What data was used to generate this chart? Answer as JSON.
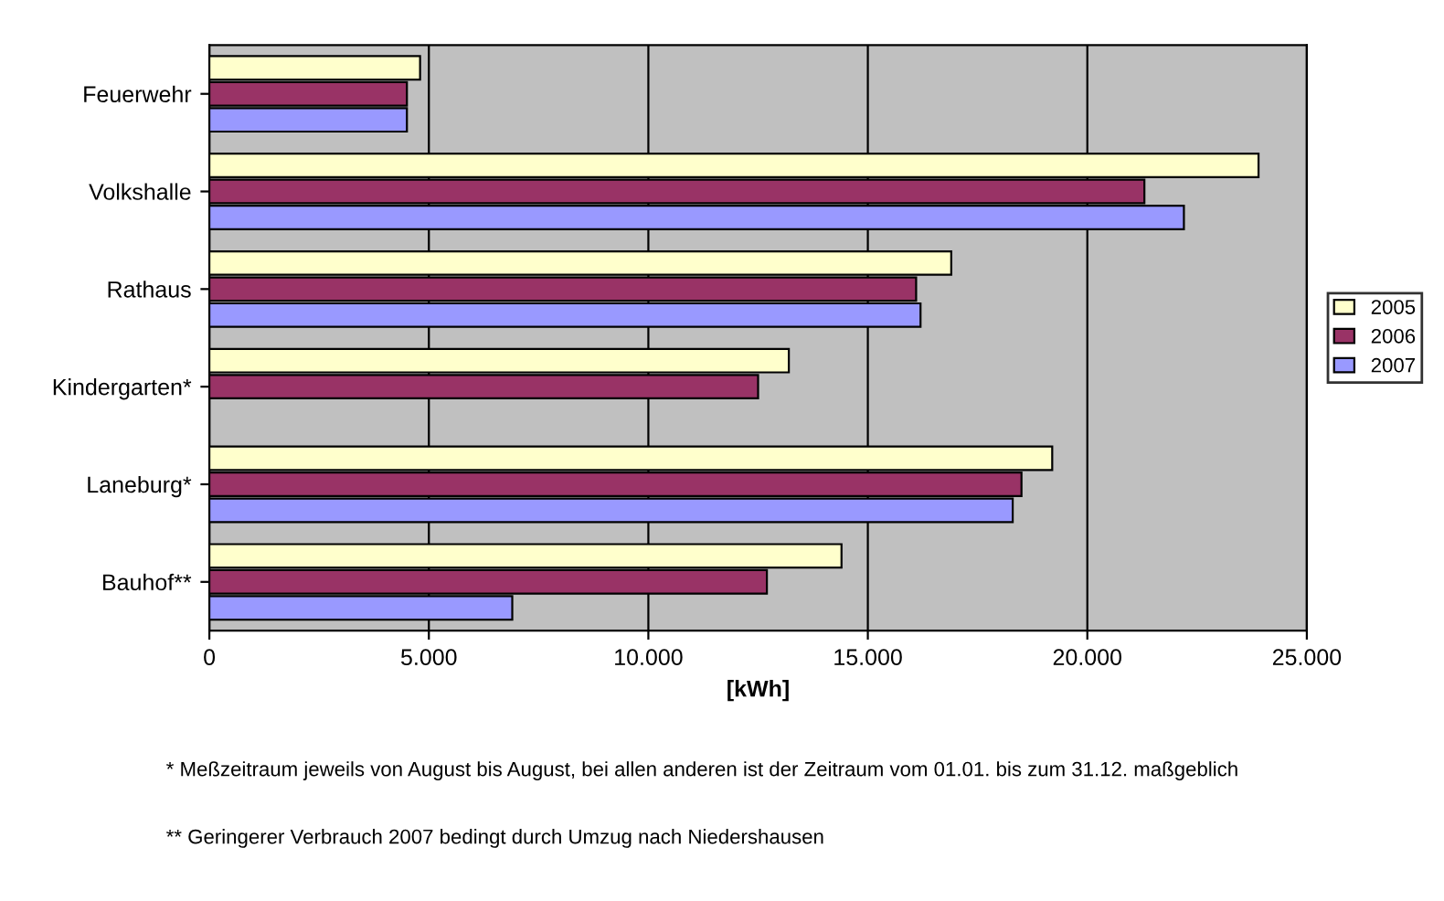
{
  "chart_data": {
    "type": "bar",
    "orientation": "horizontal",
    "xlabel": "[kWh]",
    "categories": [
      "Feuerwehr",
      "Volkshalle",
      "Rathaus",
      "Kindergarten*",
      "Laneburg*",
      "Bauhof**"
    ],
    "series": [
      {
        "name": "2005",
        "color": "#ffffcc",
        "values": [
          4800,
          23900,
          16900,
          13200,
          19200,
          14400
        ]
      },
      {
        "name": "2006",
        "color": "#993366",
        "values": [
          4500,
          21300,
          16100,
          12500,
          18500,
          12700
        ]
      },
      {
        "name": "2007",
        "color": "#9999ff",
        "values": [
          4500,
          22200,
          16200,
          null,
          18300,
          6900
        ]
      }
    ],
    "xlim": [
      0,
      25000
    ],
    "xticks": [
      0,
      {
        "value": 5000,
        "label": "5.000"
      },
      {
        "value": 10000,
        "label": "10.000"
      },
      {
        "value": 15000,
        "label": "15.000"
      },
      {
        "value": 20000,
        "label": "20.000"
      },
      {
        "value": 25000,
        "label": "25.000"
      }
    ],
    "grid": "x",
    "legend": "right",
    "annotations": [
      "* Meßzeitraum jeweils von August bis August, bei allen anderen ist der Zeitraum vom 01.01. bis zum 31.12. maßgeblich",
      "** Geringerer Verbrauch 2007 bedingt durch Umzug nach Niedershausen"
    ]
  }
}
